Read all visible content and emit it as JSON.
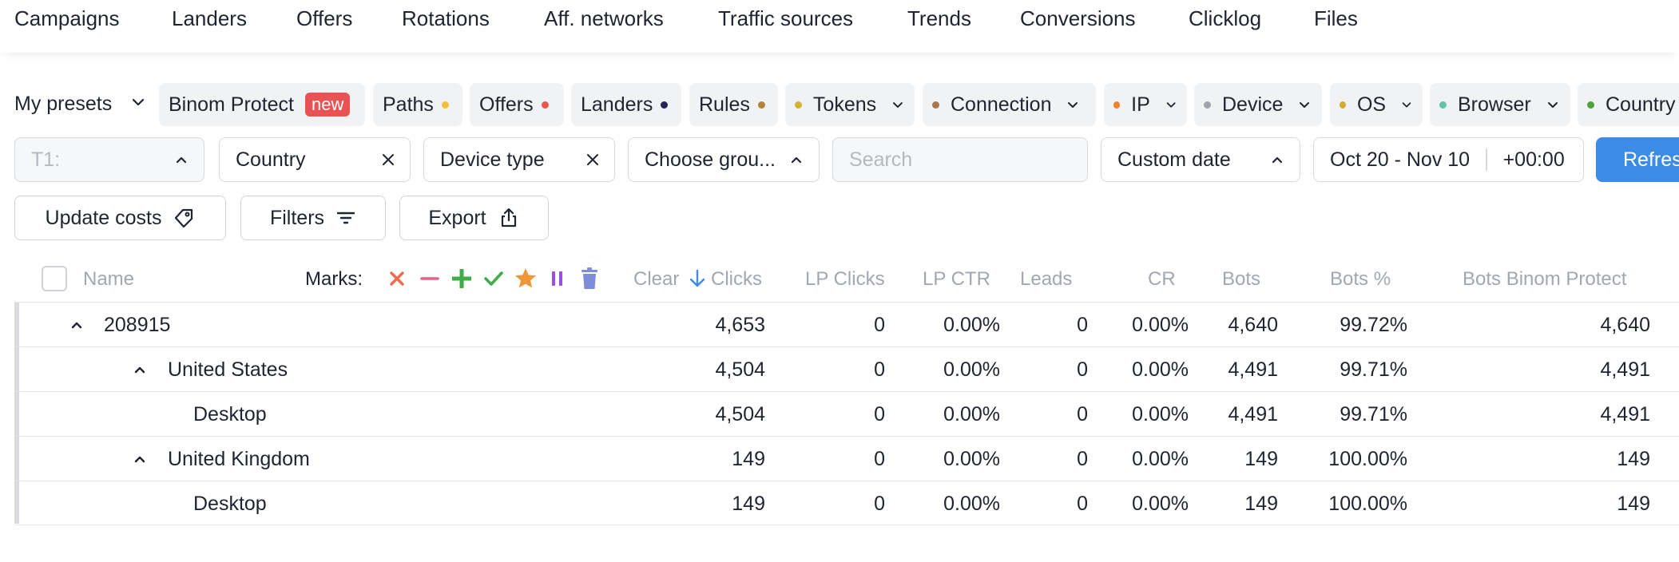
{
  "nav": {
    "items": [
      "Campaigns",
      "Landers",
      "Offers",
      "Rotations",
      "Aff. networks",
      "Traffic sources",
      "Trends",
      "Conversions",
      "Clicklog",
      "Files"
    ]
  },
  "presets": {
    "label": "My presets",
    "chips": [
      {
        "label": "Binom Protect",
        "badge": "new"
      },
      {
        "label": "Paths",
        "dot_color": "#f0c03a"
      },
      {
        "label": "Offers",
        "dot_color": "#e8574a"
      },
      {
        "label": "Landers",
        "dot_color": "#27235a"
      },
      {
        "label": "Rules",
        "dot_color": "#b5823e"
      },
      {
        "label": "Tokens",
        "dot_color": "#d4b233"
      },
      {
        "label": "Connection",
        "dot_color": "#a8774a"
      },
      {
        "label": "IP",
        "dot_color": "#ee8432"
      },
      {
        "label": "Device",
        "dot_color": "#a0a4aa"
      },
      {
        "label": "OS",
        "dot_color": "#d2ac2e"
      },
      {
        "label": "Browser",
        "dot_color": "#5fc4a8"
      },
      {
        "label": "Country",
        "dot_color": "#4ea23b"
      }
    ]
  },
  "filters": {
    "t1_label": "T1:",
    "group2": "Country",
    "group3": "Device type",
    "group4_placeholder": "Choose grou...",
    "search_placeholder": "Search",
    "date_mode": "Custom date",
    "date_range": "Oct 20 - Nov 10",
    "timezone": "+00:00",
    "refresh_label": "Refresh"
  },
  "actions": {
    "update_costs": "Update costs",
    "filters": "Filters",
    "export": "Export"
  },
  "table": {
    "marks_label": "Marks:",
    "columns": {
      "name": "Name",
      "clicks_prefix": "Clear",
      "clicks": "Clicks",
      "lp_clicks": "LP Clicks",
      "lp_ctr": "LP CTR",
      "leads": "Leads",
      "cr": "CR",
      "bots": "Bots",
      "bots_pct": "Bots %",
      "bots_binom": "Bots Binom Protect"
    },
    "rows": [
      {
        "name": "208915",
        "clicks": "4,653",
        "lp_clicks": "0",
        "lp_ctr": "0.00%",
        "leads": "0",
        "cr": "0.00%",
        "bots": "4,640",
        "bots_pct": "99.72%",
        "bots_binom": "4,640"
      },
      {
        "name": "United States",
        "clicks": "4,504",
        "lp_clicks": "0",
        "lp_ctr": "0.00%",
        "leads": "0",
        "cr": "0.00%",
        "bots": "4,491",
        "bots_pct": "99.71%",
        "bots_binom": "4,491"
      },
      {
        "name": "Desktop",
        "clicks": "4,504",
        "lp_clicks": "0",
        "lp_ctr": "0.00%",
        "leads": "0",
        "cr": "0.00%",
        "bots": "4,491",
        "bots_pct": "99.71%",
        "bots_binom": "4,491"
      },
      {
        "name": "United Kingdom",
        "clicks": "149",
        "lp_clicks": "0",
        "lp_ctr": "0.00%",
        "leads": "0",
        "cr": "0.00%",
        "bots": "149",
        "bots_pct": "100.00%",
        "bots_binom": "149"
      },
      {
        "name": "Desktop",
        "clicks": "149",
        "lp_clicks": "0",
        "lp_ctr": "0.00%",
        "leads": "0",
        "cr": "0.00%",
        "bots": "149",
        "bots_pct": "100.00%",
        "bots_binom": "149"
      }
    ]
  },
  "colors": {
    "accent": "#3c8be4",
    "badge": "#ea5353",
    "mark_red": "#ef6a4c",
    "mark_pink": "#e8608a",
    "mark_green": "#3fae4a",
    "mark_orange": "#f0963a",
    "mark_purple": "#9a4fe0",
    "mark_trash": "#7f8cd8"
  }
}
